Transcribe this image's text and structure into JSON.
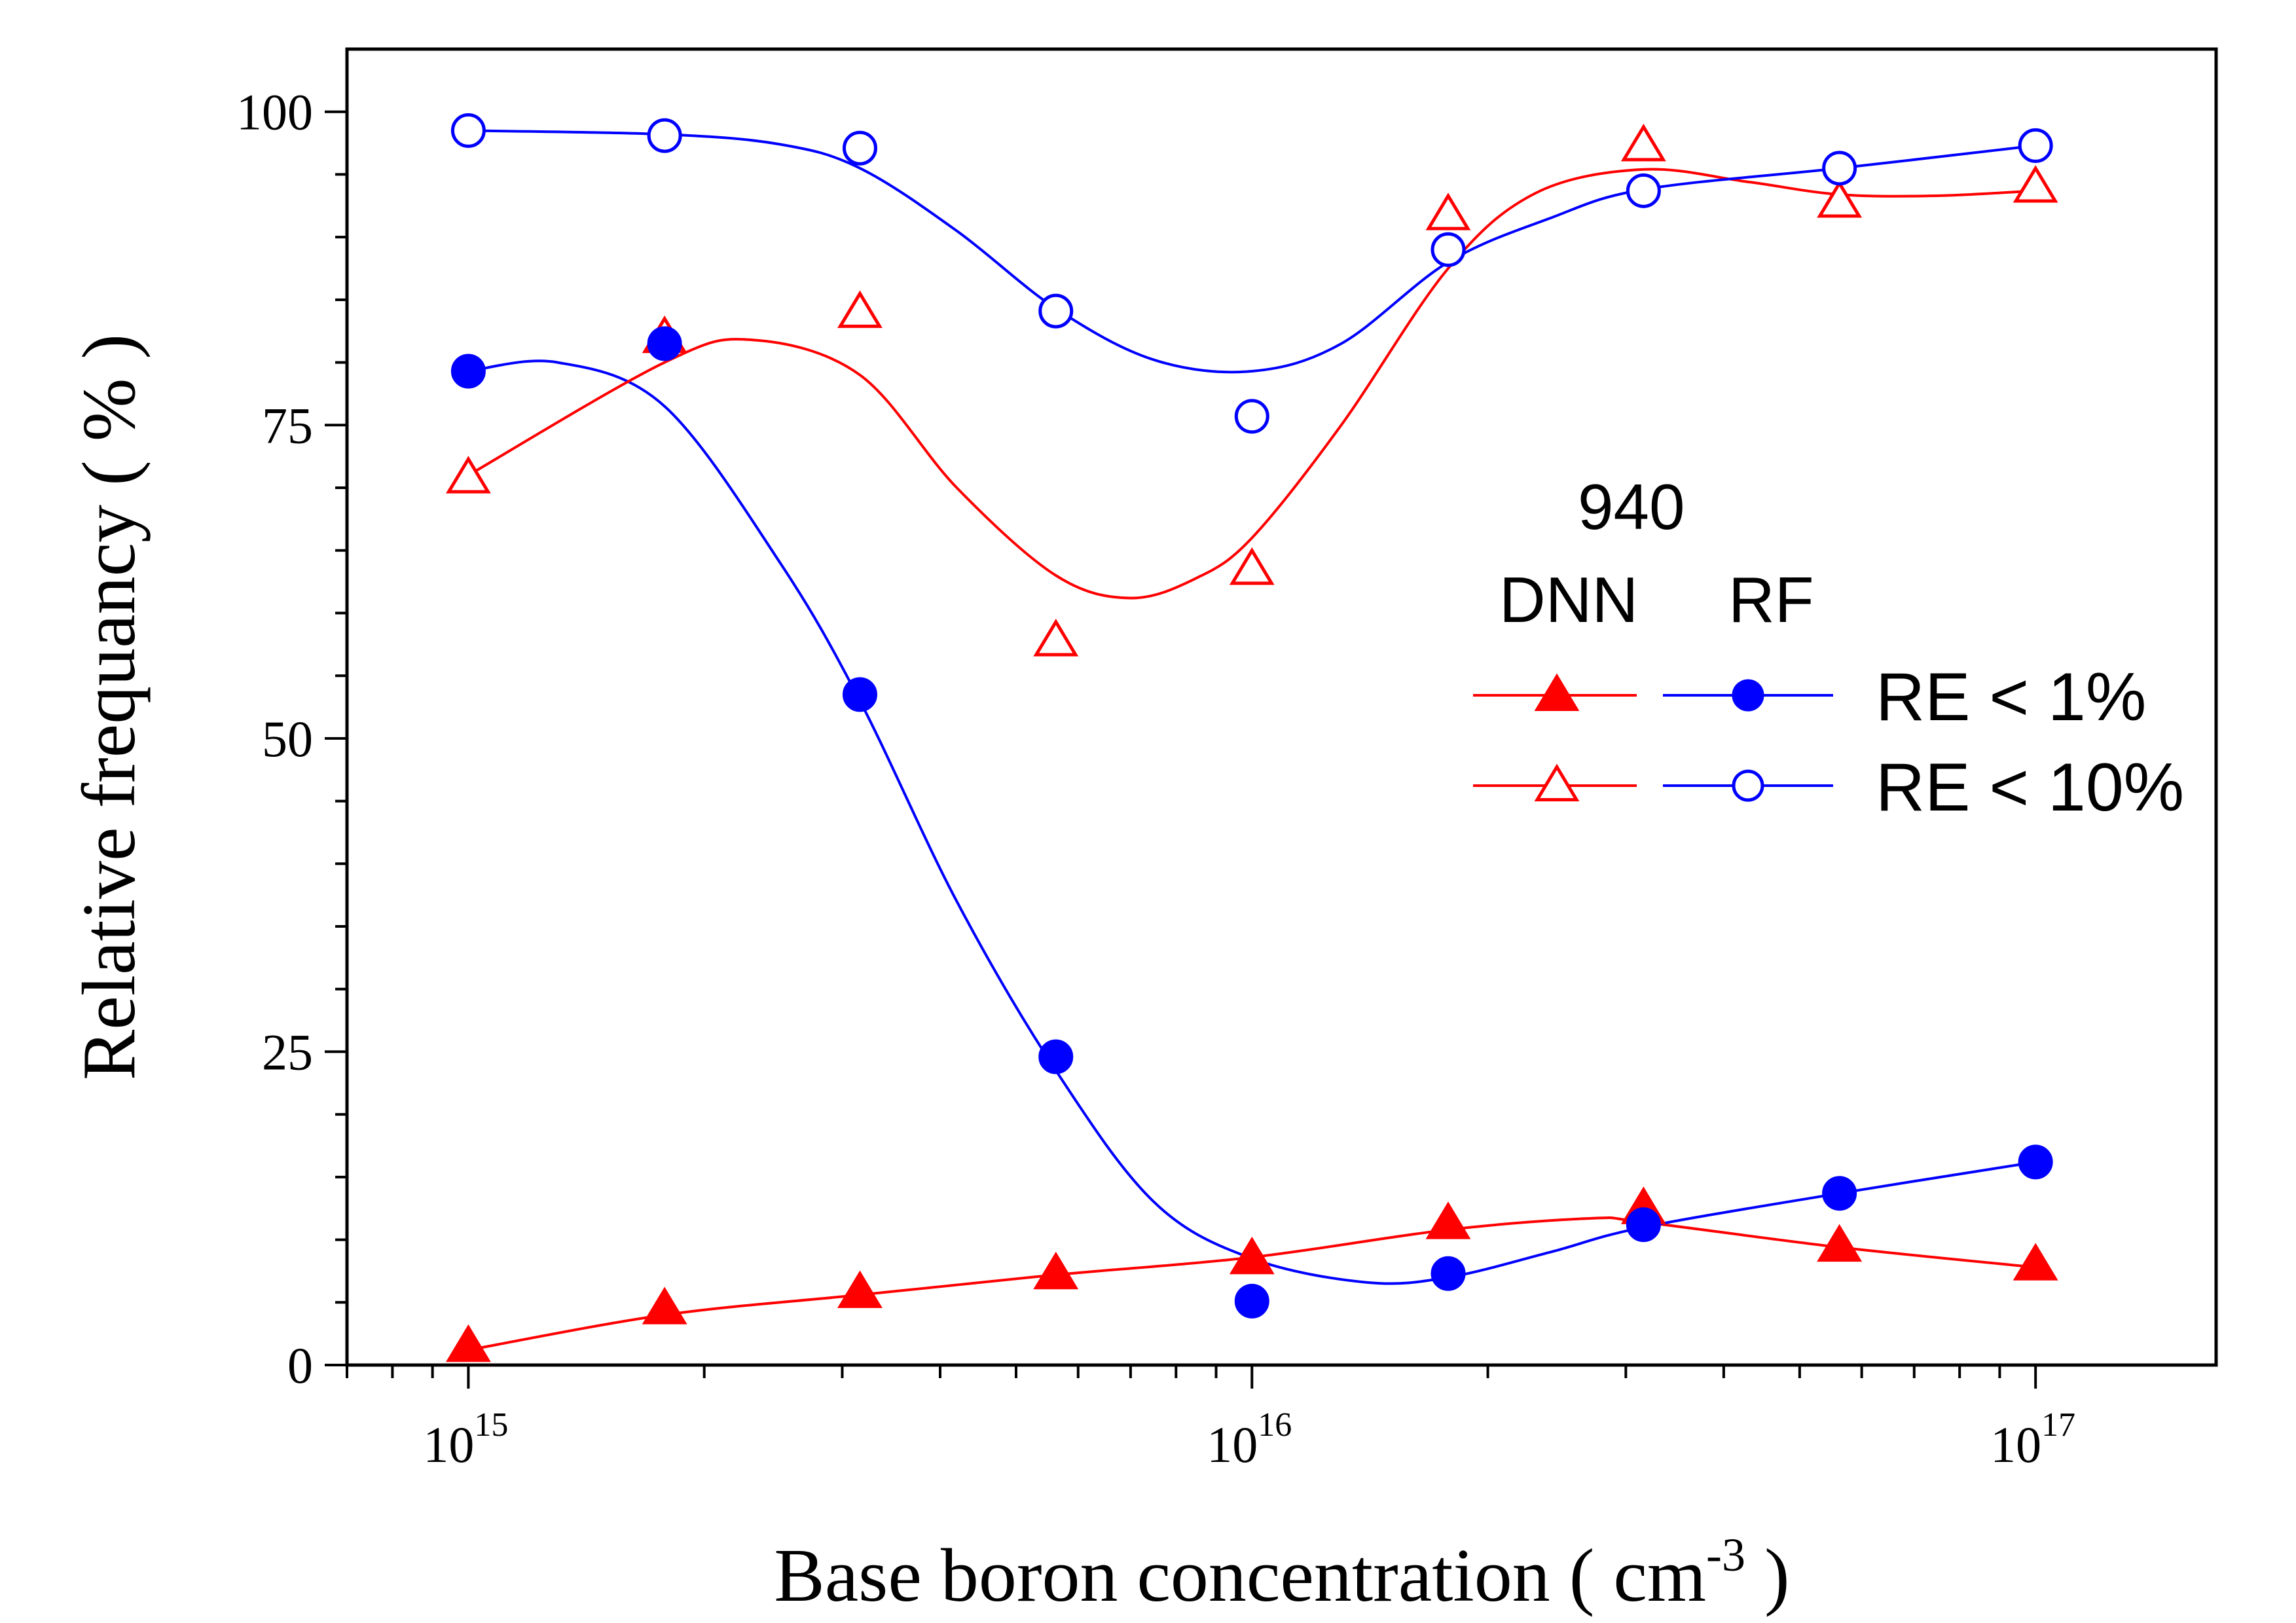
{
  "chart_data": {
    "type": "scatter",
    "xscale": "log",
    "xlim": [
      700000000000000.0,
      1.7e+17
    ],
    "ylim": [
      0,
      105
    ],
    "xlabel": "Base boron concentration  ( cm",
    "xlabel_sup": "-3",
    "xlabel_tail": " )",
    "ylabel": "Relative frequancy ( % )",
    "x_ticks": [
      {
        "base": "10",
        "exp": "15",
        "value": 1000000000000000.0
      },
      {
        "base": "10",
        "exp": "16",
        "value": 1e+16
      },
      {
        "base": "10",
        "exp": "17",
        "value": 1e+17
      }
    ],
    "y_ticks": [
      {
        "label": "0",
        "value": 0
      },
      {
        "label": "25",
        "value": 25
      },
      {
        "label": "50",
        "value": 50
      },
      {
        "label": "75",
        "value": 75
      },
      {
        "label": "100",
        "value": 100
      }
    ],
    "y_minor_step": 5,
    "x": [
      1000000000000000.0,
      1780000000000000.0,
      3160000000000000.0,
      5620000000000000.0,
      1e+16,
      1.78e+16,
      3.16e+16,
      5.62e+16,
      1e+17
    ],
    "series": [
      {
        "id": "dnn_re1",
        "color": "#ff0000",
        "marker": "triangle",
        "filled": true,
        "values": [
          1.5,
          4.5,
          5.8,
          7.3,
          8.5,
          11.3,
          12.5,
          9.5,
          8.0
        ],
        "fit": [
          [
            1000000000000000.0,
            1.2
          ],
          [
            1780000000000000.0,
            4.0
          ],
          [
            3160000000000000.0,
            5.6
          ],
          [
            5620000000000000.0,
            7.2
          ],
          [
            1e+16,
            8.6
          ],
          [
            1.78e+16,
            10.8
          ],
          [
            2.7e+16,
            11.7
          ],
          [
            3.16e+16,
            11.4
          ],
          [
            5.62e+16,
            9.4
          ],
          [
            1e+17,
            7.8
          ]
        ]
      },
      {
        "id": "rf_re1",
        "color": "#0000ff",
        "marker": "circle",
        "filled": true,
        "values": [
          79.3,
          81.5,
          53.5,
          24.6,
          5.1,
          7.3,
          11.2,
          13.7,
          16.2
        ],
        "fit": [
          [
            1000000000000000.0,
            79.3
          ],
          [
            1300000000000000.0,
            80.0
          ],
          [
            1780000000000000.0,
            76.5
          ],
          [
            2500000000000000.0,
            64.0
          ],
          [
            3160000000000000.0,
            53.0
          ],
          [
            4200000000000000.0,
            37.0
          ],
          [
            5620000000000000.0,
            23.5
          ],
          [
            7500000000000000.0,
            13.0
          ],
          [
            1e+16,
            8.5
          ],
          [
            1.4e+16,
            6.6
          ],
          [
            1.78e+16,
            7.0
          ],
          [
            2.4e+16,
            9.0
          ],
          [
            3.16e+16,
            11.0
          ],
          [
            5.62e+16,
            13.7
          ],
          [
            1e+17,
            16.2
          ]
        ]
      },
      {
        "id": "dnn_re10",
        "color": "#ff0000",
        "marker": "triangle",
        "filled": false,
        "values": [
          70.8,
          82.0,
          84.0,
          57.8,
          63.5,
          91.8,
          97.3,
          92.8,
          94.0
        ],
        "fit": [
          [
            1000000000000000.0,
            71.0
          ],
          [
            1780000000000000.0,
            80.0
          ],
          [
            2300000000000000.0,
            81.8
          ],
          [
            3160000000000000.0,
            79.0
          ],
          [
            4200000000000000.0,
            70.0
          ],
          [
            5620000000000000.0,
            63.0
          ],
          [
            7000000000000000.0,
            61.2
          ],
          [
            8500000000000000.0,
            62.8
          ],
          [
            1e+16,
            66.0
          ],
          [
            1.3e+16,
            75.0
          ],
          [
            1.78e+16,
            87.5
          ],
          [
            2.3e+16,
            93.5
          ],
          [
            3.16e+16,
            95.4
          ],
          [
            4.3e+16,
            94.4
          ],
          [
            5.62e+16,
            93.4
          ],
          [
            7.5e+16,
            93.3
          ],
          [
            1e+17,
            93.7
          ]
        ]
      },
      {
        "id": "rf_re10",
        "color": "#0000ff",
        "marker": "circle",
        "filled": false,
        "values": [
          98.5,
          98.1,
          97.1,
          84.1,
          75.7,
          89.0,
          93.7,
          95.5,
          97.3
        ],
        "fit": [
          [
            1000000000000000.0,
            98.5
          ],
          [
            1780000000000000.0,
            98.2
          ],
          [
            2500000000000000.0,
            97.4
          ],
          [
            3160000000000000.0,
            95.5
          ],
          [
            4200000000000000.0,
            90.5
          ],
          [
            5620000000000000.0,
            84.3
          ],
          [
            7500000000000000.0,
            80.2
          ],
          [
            1e+16,
            79.3
          ],
          [
            1.3e+16,
            81.5
          ],
          [
            1.78e+16,
            88.0
          ],
          [
            2.4e+16,
            91.5
          ],
          [
            3.16e+16,
            93.8
          ],
          [
            5.62e+16,
            95.5
          ],
          [
            1e+17,
            97.3
          ]
        ]
      }
    ],
    "legend": {
      "placement": "right-middle",
      "title": "940",
      "col1": "DNN",
      "col2": "RF",
      "rows": [
        {
          "label": "RE < 1%",
          "filled": true
        },
        {
          "label": "RE < 10%",
          "filled": false
        }
      ]
    }
  }
}
